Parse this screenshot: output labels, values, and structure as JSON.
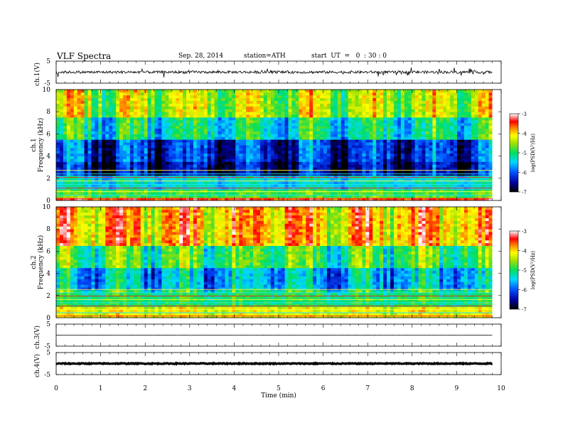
{
  "header": {
    "title": "VLF  Spectra",
    "date": "Sep. 28, 2014",
    "station": "station=ATH",
    "start": "start  UT  =   0  : 30 : 0"
  },
  "chart_data": [
    {
      "type": "line",
      "panel": "ch1-waveform",
      "ylabel": "ch.1(V)",
      "ylim": [
        -5,
        5
      ],
      "yticks": [
        "5",
        "-5"
      ],
      "xlim": [
        0,
        10
      ],
      "data_end_min": 9.8,
      "baseline": 0,
      "approx_amplitude": 0.6,
      "spike_amplitude": 2.0,
      "color": "#000000"
    },
    {
      "type": "heatmap",
      "panel": "ch1-spectrogram",
      "ylabel_top": "ch.1",
      "ylabel": "Frequency  (kHz)",
      "ylim": [
        0,
        10
      ],
      "yticks": [
        "0",
        "2",
        "4",
        "6",
        "8",
        "10"
      ],
      "xlim": [
        0,
        10
      ],
      "data_end_min": 9.8,
      "colorbar": {
        "label": "log(PSD(V²/Hz)",
        "range": [
          -7,
          -3
        ],
        "ticks": [
          "-3",
          "-4",
          "-5",
          "-6",
          "-7"
        ]
      },
      "approx_logpsd_by_band": [
        {
          "freq_khz": [
            0,
            0.3
          ],
          "logpsd": -3.5
        },
        {
          "freq_khz": [
            0.3,
            1.0
          ],
          "logpsd": -4.8
        },
        {
          "freq_khz": [
            1.0,
            2.2
          ],
          "logpsd": -5.4
        },
        {
          "freq_khz": [
            2.2,
            3.5
          ],
          "logpsd": -6.5
        },
        {
          "freq_khz": [
            3.5,
            5.5
          ],
          "logpsd": -6.2
        },
        {
          "freq_khz": [
            5.5,
            7.5
          ],
          "logpsd": -5.2
        },
        {
          "freq_khz": [
            7.5,
            10
          ],
          "logpsd": -4.4
        }
      ]
    },
    {
      "type": "heatmap",
      "panel": "ch2-spectrogram",
      "ylabel_top": "ch.2",
      "ylabel": "Frequency  (kHz)",
      "ylim": [
        0,
        10
      ],
      "yticks": [
        "0",
        "2",
        "4",
        "6",
        "8",
        "10"
      ],
      "xlim": [
        0,
        10
      ],
      "data_end_min": 9.8,
      "colorbar": {
        "label": "log(PSD(V²/Hz)",
        "range": [
          -7,
          -3
        ],
        "ticks": [
          "-3",
          "-4",
          "-5",
          "-6",
          "-7"
        ]
      },
      "approx_logpsd_by_band": [
        {
          "freq_khz": [
            0,
            1.0
          ],
          "logpsd": -4.2
        },
        {
          "freq_khz": [
            1.0,
            2.5
          ],
          "logpsd": -5.0
        },
        {
          "freq_khz": [
            2.5,
            4.5
          ],
          "logpsd": -5.6
        },
        {
          "freq_khz": [
            4.5,
            6.5
          ],
          "logpsd": -4.9
        },
        {
          "freq_khz": [
            6.5,
            10
          ],
          "logpsd": -3.9
        }
      ]
    },
    {
      "type": "line",
      "panel": "ch3-waveform",
      "ylabel": "ch.3(V)",
      "ylim": [
        -5,
        5
      ],
      "yticks": [
        "5",
        "-5"
      ],
      "xlim": [
        0,
        10
      ],
      "data_end_min": 9.8,
      "baseline": 0,
      "approx_amplitude": 0.05,
      "color": "#000000"
    },
    {
      "type": "line",
      "panel": "ch4-waveform",
      "ylabel": "ch.4(V)",
      "ylim": [
        -5,
        5
      ],
      "yticks": [
        "5",
        "-5"
      ],
      "xlim": [
        0,
        10
      ],
      "data_end_min": 9.8,
      "baseline": 0,
      "approx_amplitude": 0.2,
      "color": "#000000"
    }
  ],
  "x_axis": {
    "label": "Time  (min)",
    "ticks": [
      "0",
      "1",
      "2",
      "3",
      "4",
      "5",
      "6",
      "7",
      "8",
      "9",
      "10"
    ]
  }
}
